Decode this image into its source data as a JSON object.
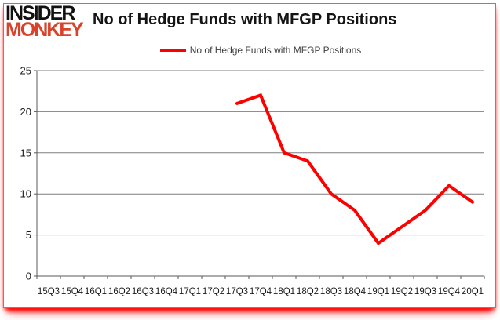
{
  "header": {
    "logo_line1": "INSIDER",
    "logo_line2": "MONKEY",
    "title": "No of Hedge Funds with MFGP Positions"
  },
  "legend": {
    "label": "No of Hedge Funds with MFGP Positions",
    "line_color": "#ff0000",
    "position": "top"
  },
  "chart_data": {
    "type": "line",
    "title": "No of Hedge Funds with MFGP Positions",
    "categories": [
      "15Q3",
      "15Q4",
      "16Q1",
      "16Q2",
      "16Q3",
      "16Q4",
      "17Q1",
      "17Q2",
      "17Q3",
      "17Q4",
      "18Q1",
      "18Q2",
      "18Q3",
      "18Q4",
      "19Q1",
      "19Q2",
      "19Q3",
      "19Q4",
      "20Q1"
    ],
    "series": [
      {
        "name": "No of Hedge Funds with MFGP Positions",
        "color": "#ff0000",
        "values": [
          null,
          null,
          null,
          null,
          null,
          null,
          null,
          null,
          21,
          22,
          15,
          14,
          10,
          8,
          4,
          6,
          8,
          11,
          9
        ]
      }
    ],
    "xlabel": "",
    "ylabel": "",
    "ylim": [
      0,
      25
    ],
    "yticks": [
      0,
      5,
      10,
      15,
      20,
      25
    ],
    "grid": "horizontal",
    "legend_position": "top"
  },
  "colors": {
    "series_red": "#ff0000",
    "logo_red": "#d9432b",
    "gridline": "#7f7f7f",
    "axis": "#595959",
    "tick_label": "#1a1a1a",
    "bottom_glow": "#ff0000"
  }
}
